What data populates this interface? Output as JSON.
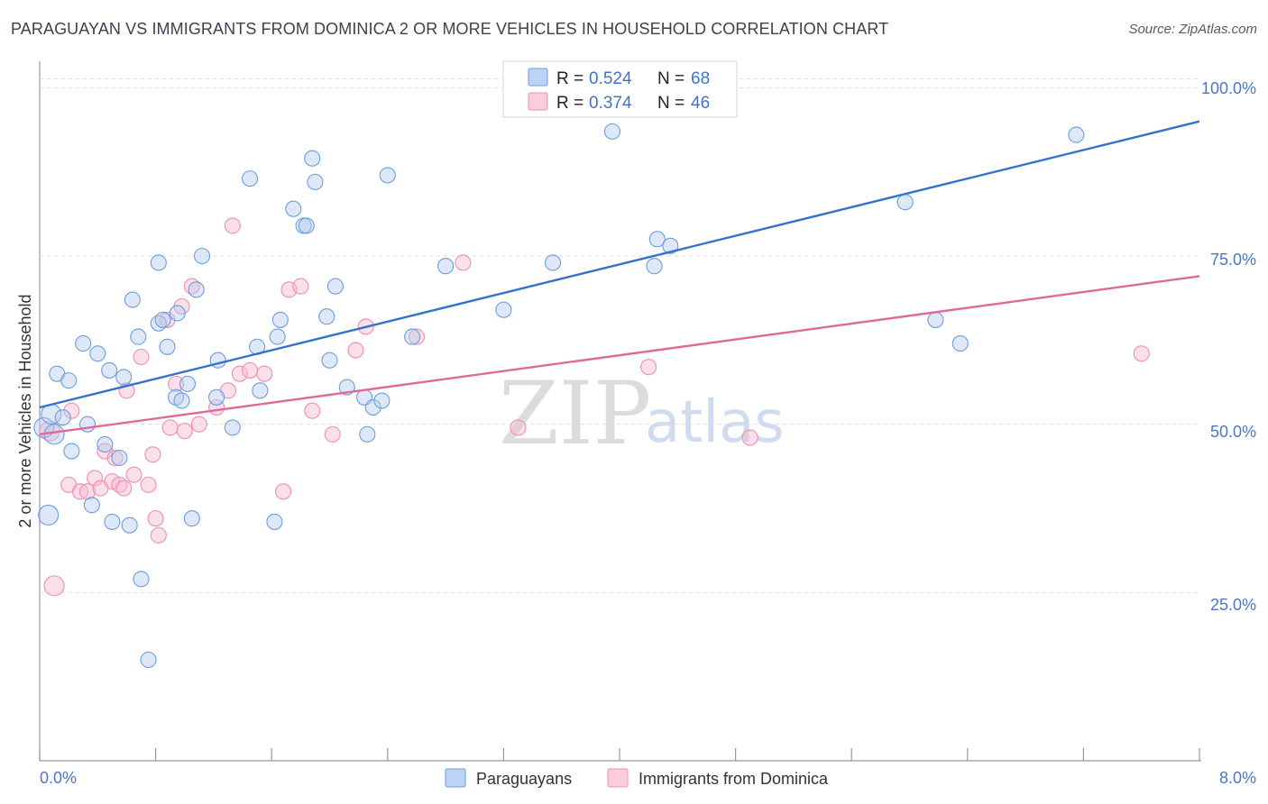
{
  "header": {
    "title": "PARAGUAYAN VS IMMIGRANTS FROM DOMINICA 2 OR MORE VEHICLES IN HOUSEHOLD CORRELATION CHART",
    "source": "Source: ZipAtlas.com"
  },
  "watermark": {
    "zip": "ZIP",
    "atlas": "atlas"
  },
  "legend_top": {
    "rows": [
      {
        "r_label": "R =",
        "r_value": "0.524",
        "n_label": "N =",
        "n_value": "68"
      },
      {
        "r_label": "R =",
        "r_value": "0.374",
        "n_label": "N =",
        "n_value": "46"
      }
    ]
  },
  "chart_data": {
    "type": "scatter",
    "title": "PARAGUAYAN VS IMMIGRANTS FROM DOMINICA 2 OR MORE VEHICLES IN HOUSEHOLD CORRELATION CHART",
    "xlabel": "",
    "ylabel": "2 or more Vehicles in Household",
    "xlim": [
      0,
      8
    ],
    "ylim": [
      0,
      105
    ],
    "x_tick_labels": [
      "0.0%",
      "8.0%"
    ],
    "y_tick_labels": [
      "25.0%",
      "50.0%",
      "75.0%",
      "100.0%"
    ],
    "y_tick_values": [
      25,
      50,
      75,
      100
    ],
    "grid": true,
    "legend_position": "top-center",
    "colors": {
      "paraguayans": "#6a9ee0",
      "dominica": "#ee8fb0",
      "line_paraguayans": "#3473cc",
      "line_dominica": "#e06a96"
    },
    "series": [
      {
        "name": "Paraguayans",
        "r": 0.524,
        "n": 68,
        "trend": {
          "x": [
            0.0,
            8.0
          ],
          "y": [
            52.5,
            95.0
          ]
        },
        "points": [
          [
            0.03,
            49.5
          ],
          [
            0.06,
            36.5
          ],
          [
            0.08,
            51.5
          ],
          [
            0.12,
            57.5
          ],
          [
            0.16,
            51.0
          ],
          [
            0.2,
            56.5
          ],
          [
            0.22,
            46.0
          ],
          [
            0.3,
            62.0
          ],
          [
            0.33,
            50.0
          ],
          [
            0.36,
            38.0
          ],
          [
            0.4,
            60.5
          ],
          [
            0.45,
            47.0
          ],
          [
            0.48,
            58.0
          ],
          [
            0.5,
            35.5
          ],
          [
            0.55,
            45.0
          ],
          [
            0.58,
            57.0
          ],
          [
            0.62,
            35.0
          ],
          [
            0.64,
            68.5
          ],
          [
            0.68,
            63.0
          ],
          [
            0.7,
            27.0
          ],
          [
            0.75,
            15.0
          ],
          [
            0.82,
            65.0
          ],
          [
            0.82,
            74.0
          ],
          [
            0.85,
            65.5
          ],
          [
            0.88,
            61.5
          ],
          [
            0.94,
            54.0
          ],
          [
            0.95,
            66.5
          ],
          [
            0.98,
            53.5
          ],
          [
            1.02,
            56.0
          ],
          [
            1.05,
            36.0
          ],
          [
            1.08,
            70.0
          ],
          [
            1.12,
            75.0
          ],
          [
            1.22,
            54.0
          ],
          [
            1.23,
            59.5
          ],
          [
            1.33,
            49.5
          ],
          [
            1.45,
            86.5
          ],
          [
            1.5,
            61.5
          ],
          [
            1.52,
            55.0
          ],
          [
            1.64,
            63.0
          ],
          [
            1.66,
            65.5
          ],
          [
            1.62,
            35.5
          ],
          [
            1.75,
            82.0
          ],
          [
            1.82,
            79.5
          ],
          [
            1.84,
            79.5
          ],
          [
            1.88,
            89.5
          ],
          [
            1.9,
            86.0
          ],
          [
            1.98,
            66.0
          ],
          [
            2.0,
            59.5
          ],
          [
            2.04,
            70.5
          ],
          [
            2.12,
            55.5
          ],
          [
            2.24,
            54.0
          ],
          [
            2.26,
            48.5
          ],
          [
            2.3,
            52.5
          ],
          [
            2.36,
            53.5
          ],
          [
            2.4,
            87.0
          ],
          [
            2.57,
            63.0
          ],
          [
            2.8,
            73.5
          ],
          [
            3.2,
            67.0
          ],
          [
            3.54,
            74.0
          ],
          [
            3.95,
            93.5
          ],
          [
            4.26,
            77.5
          ],
          [
            4.24,
            73.5
          ],
          [
            4.35,
            76.5
          ],
          [
            5.97,
            83.0
          ],
          [
            6.18,
            65.5
          ],
          [
            6.35,
            62.0
          ],
          [
            7.15,
            93.0
          ],
          [
            0.1,
            48.5
          ]
        ]
      },
      {
        "name": "Immigrants from Dominica",
        "r": 0.374,
        "n": 46,
        "trend": {
          "x": [
            0.0,
            8.0
          ],
          "y": [
            48.5,
            72.0
          ]
        },
        "points": [
          [
            0.07,
            49.0
          ],
          [
            0.1,
            26.0
          ],
          [
            0.2,
            41.0
          ],
          [
            0.22,
            52.0
          ],
          [
            0.28,
            40.0
          ],
          [
            0.33,
            40.0
          ],
          [
            0.38,
            42.0
          ],
          [
            0.42,
            40.5
          ],
          [
            0.45,
            46.0
          ],
          [
            0.5,
            41.5
          ],
          [
            0.52,
            45.0
          ],
          [
            0.55,
            41.0
          ],
          [
            0.58,
            40.5
          ],
          [
            0.6,
            55.0
          ],
          [
            0.65,
            42.5
          ],
          [
            0.7,
            60.0
          ],
          [
            0.75,
            41.0
          ],
          [
            0.78,
            45.5
          ],
          [
            0.8,
            36.0
          ],
          [
            0.82,
            33.5
          ],
          [
            0.88,
            65.5
          ],
          [
            0.9,
            49.5
          ],
          [
            0.94,
            56.0
          ],
          [
            0.98,
            67.5
          ],
          [
            1.0,
            49.0
          ],
          [
            1.05,
            70.5
          ],
          [
            1.1,
            50.0
          ],
          [
            1.22,
            52.5
          ],
          [
            1.3,
            55.0
          ],
          [
            1.33,
            79.5
          ],
          [
            1.38,
            57.5
          ],
          [
            1.45,
            58.0
          ],
          [
            1.55,
            57.5
          ],
          [
            1.68,
            40.0
          ],
          [
            1.72,
            70.0
          ],
          [
            1.8,
            70.5
          ],
          [
            1.88,
            52.0
          ],
          [
            2.02,
            48.5
          ],
          [
            2.18,
            61.0
          ],
          [
            2.25,
            64.5
          ],
          [
            2.6,
            63.0
          ],
          [
            2.92,
            74.0
          ],
          [
            3.3,
            49.5
          ],
          [
            4.2,
            58.5
          ],
          [
            4.9,
            48.0
          ],
          [
            7.6,
            60.5
          ]
        ]
      }
    ]
  },
  "legend_bottom": {
    "items": [
      {
        "label": "Paraguayans"
      },
      {
        "label": "Immigrants from Dominica"
      }
    ]
  }
}
